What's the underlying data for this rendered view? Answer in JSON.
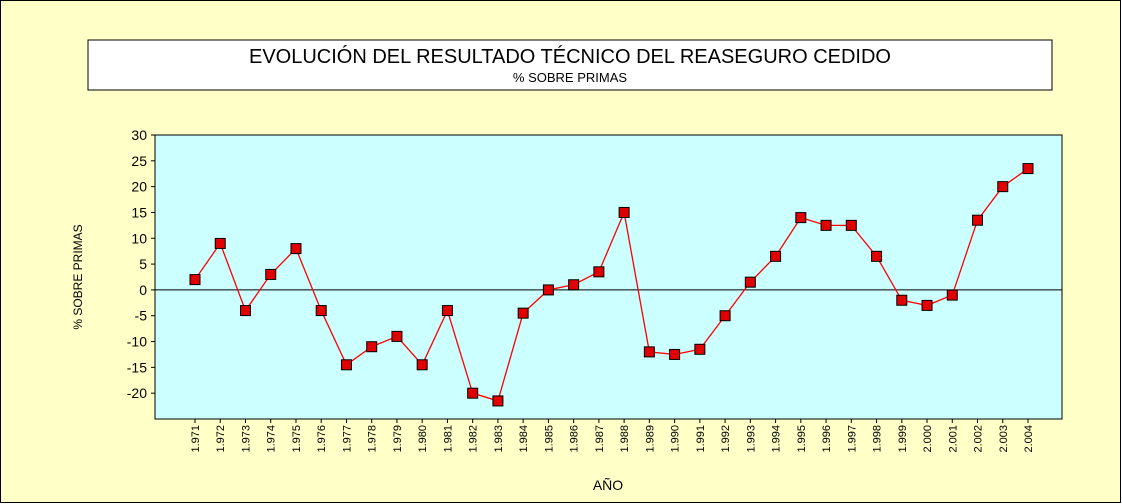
{
  "chart_data": {
    "type": "line",
    "title": "EVOLUCIÓN  DEL RESULTADO TÉCNICO DEL REASEGURO CEDIDO",
    "subtitle": "% SOBRE PRIMAS",
    "y_label": "% SOBRE PRIMAS",
    "x_label": "AÑO",
    "categories": [
      "1.971",
      "1.972",
      "1.973",
      "1.974",
      "1.975",
      "1.976",
      "1.977",
      "1.978",
      "1.979",
      "1.980",
      "1.981",
      "1.982",
      "1.983",
      "1.984",
      "1.985",
      "1.986",
      "1.987",
      "1.988",
      "1.989",
      "1.990",
      "1.991",
      "1.992",
      "1.993",
      "1.994",
      "1.995",
      "1.996",
      "1.997",
      "1.998",
      "1.999",
      "2.000",
      "2.001",
      "2.002",
      "2.003",
      "2.004"
    ],
    "series": [
      {
        "name": "% SOBRE PRIMAS",
        "color": "#ff0000",
        "values": [
          2,
          9,
          -4,
          3,
          8,
          -4,
          -14.5,
          -11,
          -9,
          -14.5,
          -4,
          -20,
          -21.5,
          -4.5,
          0,
          1,
          3.5,
          15,
          -12,
          -12.5,
          -11.5,
          -5,
          1.5,
          6.5,
          14,
          12.5,
          12.5,
          6.5,
          -2,
          -3,
          -1,
          13.5,
          20,
          23.5
        ]
      }
    ],
    "ylim": [
      -25,
      30
    ],
    "yticks": [
      -20,
      -15,
      -10,
      -5,
      0,
      5,
      10,
      15,
      20,
      25,
      30
    ]
  }
}
